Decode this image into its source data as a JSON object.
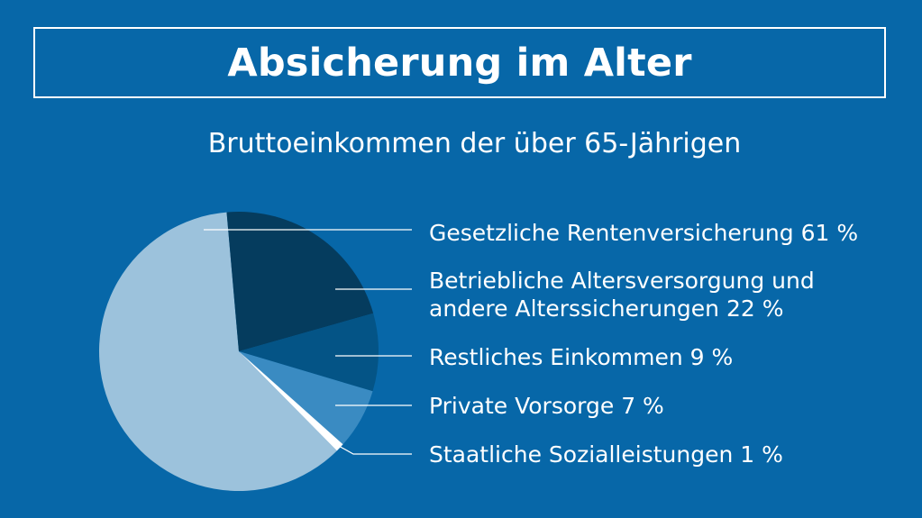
{
  "title": "Absicherung im Alter",
  "subtitle": "Bruttoeinkommen der über 65-Jährigen",
  "chart_data": {
    "type": "pie",
    "title": "Absicherung im Alter",
    "subtitle": "Bruttoeinkommen der über 65-Jährigen",
    "unit": "%",
    "slices": [
      {
        "label": "Gesetzliche Rentenversicherung 61 %",
        "value": 61,
        "color": "#9cc2dc"
      },
      {
        "label": "Betriebliche Altersversorgung und andere Alterssicherungen 22 %",
        "value": 22,
        "color": "#053c5e"
      },
      {
        "label": "Restliches Einkommen 9 %",
        "value": 9,
        "color": "#045486"
      },
      {
        "label": "Private Vorsorge 7 %",
        "value": 7,
        "color": "#3a8bc2"
      },
      {
        "label": "Staatliche Sozialleistungen 1 %",
        "value": 1,
        "color": "#ffffff"
      }
    ],
    "legend_lines": [
      [
        "Gesetzliche Rentenversicherung 61 %"
      ],
      [
        "Betriebliche Altersversorgung und",
        "andere Alterssicherungen 22 %"
      ],
      [
        "Restliches Einkommen 9 %"
      ],
      [
        "Private Vorsorge 7 %"
      ],
      [
        "Staatliche Sozialleistungen 1 %"
      ]
    ],
    "legend_placement": "right",
    "grid": false
  }
}
